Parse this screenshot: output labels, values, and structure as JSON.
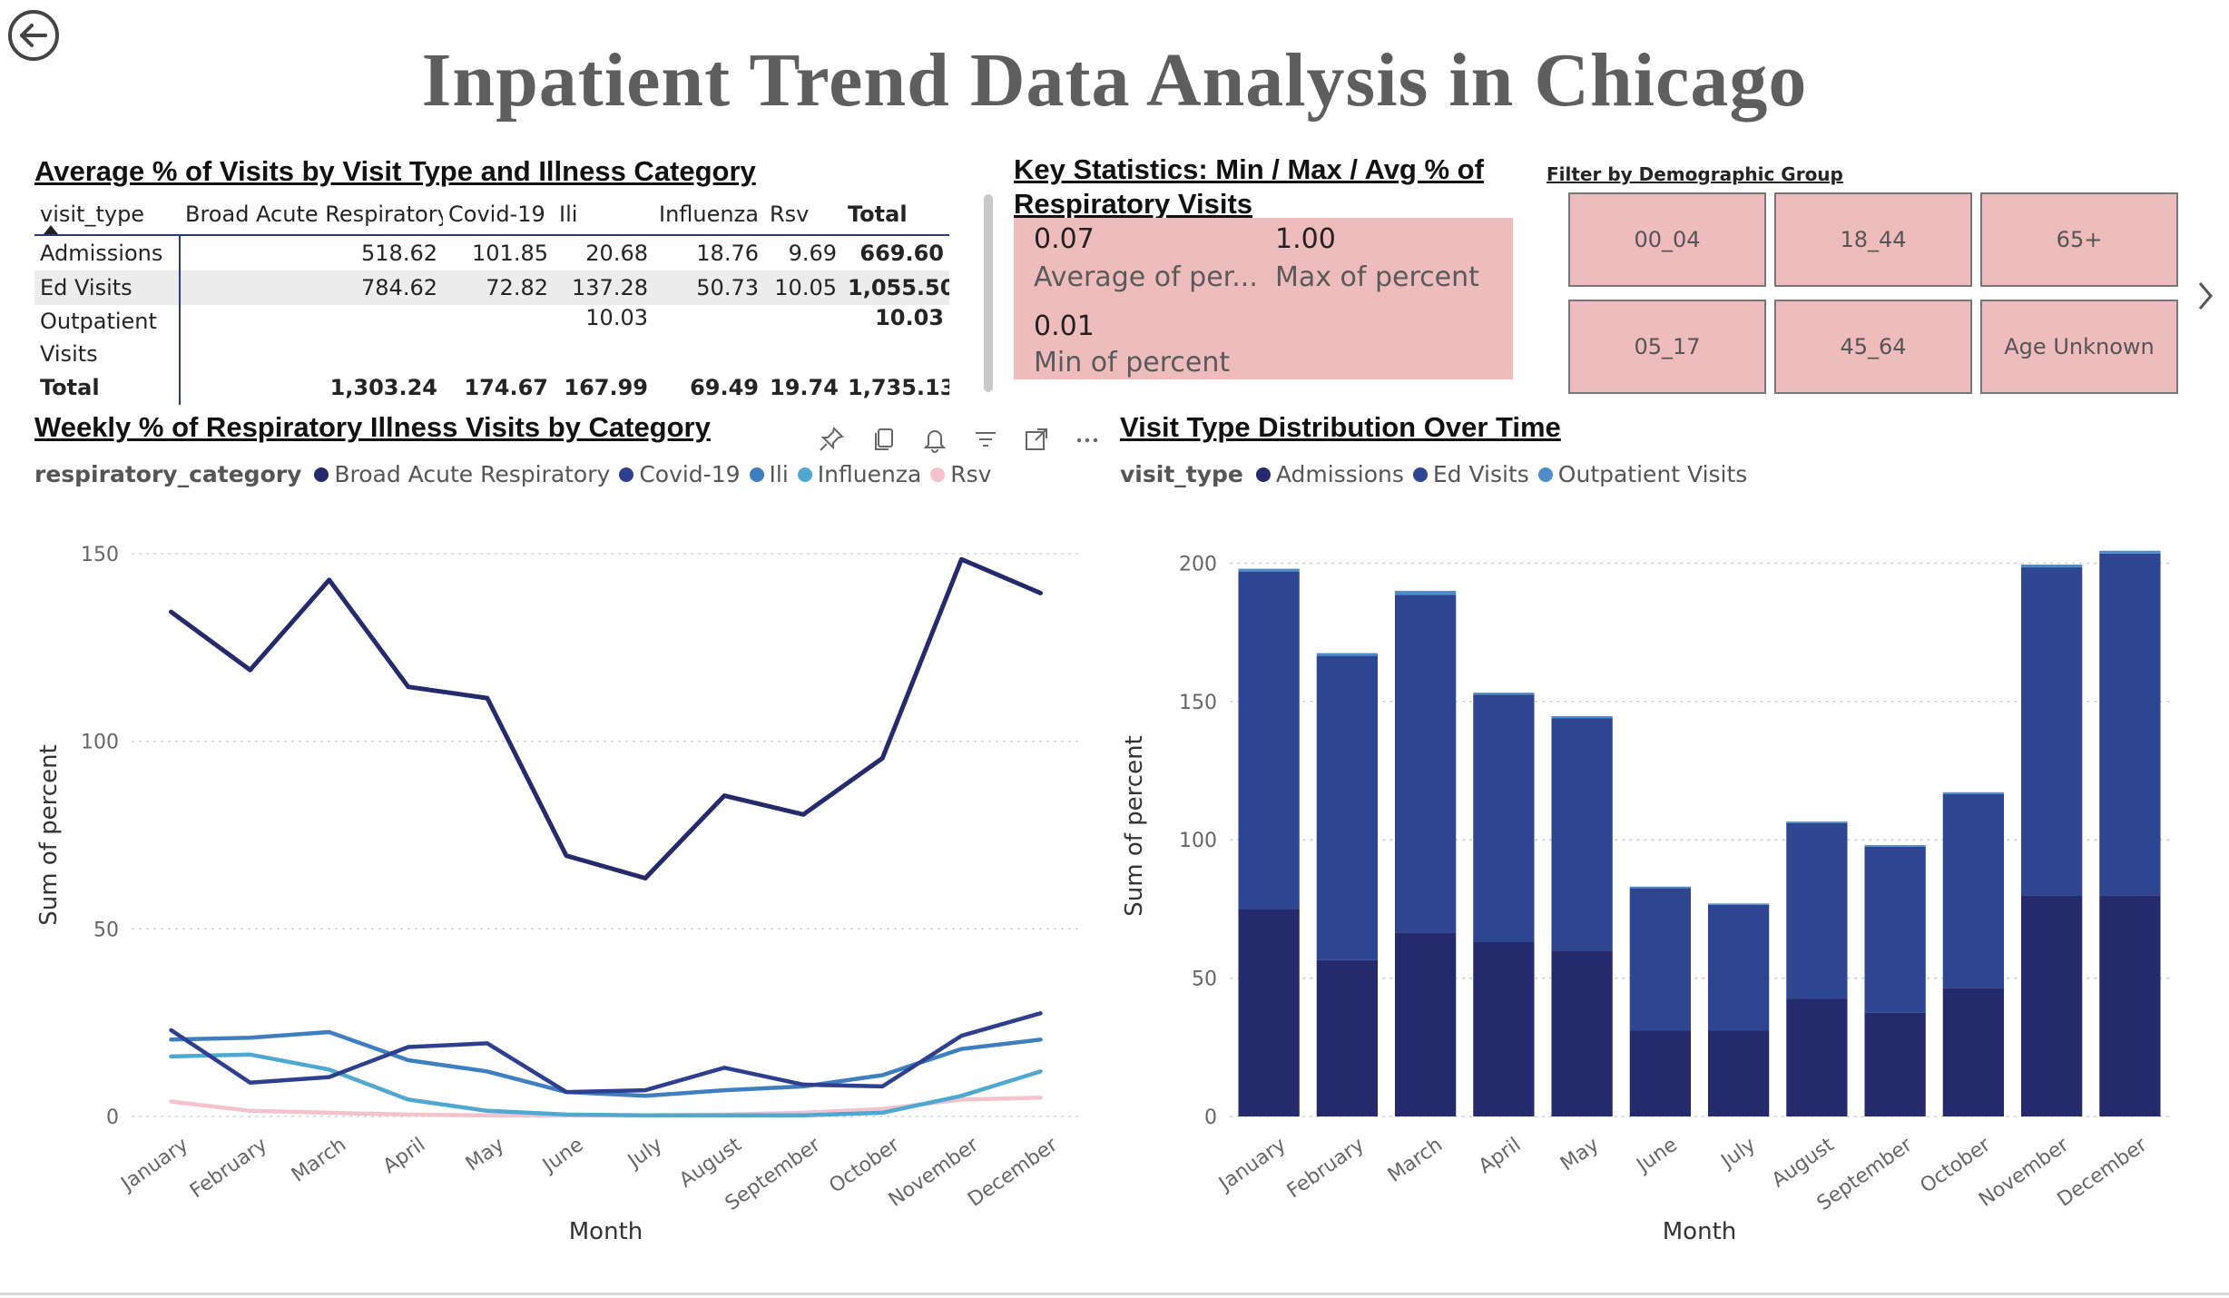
{
  "page": {
    "title": "Inpatient Trend Data Analysis in Chicago"
  },
  "matrix": {
    "title": "Average % of Visits by Visit Type and Illness Category",
    "columns": [
      "visit_type",
      "Broad Acute Respiratory",
      "Covid-19",
      "Ili",
      "Influenza",
      "Rsv",
      "Total"
    ],
    "rows": [
      [
        "Admissions",
        "518.62",
        "101.85",
        "20.68",
        "18.76",
        "9.69",
        "669.60"
      ],
      [
        "Ed Visits",
        "784.62",
        "72.82",
        "137.28",
        "50.73",
        "10.05",
        "1,055.50"
      ],
      [
        "Outpatient Visits",
        "",
        "",
        "10.03",
        "",
        "",
        "10.03"
      ],
      [
        "Total",
        "1,303.24",
        "174.67",
        "167.99",
        "69.49",
        "19.74",
        "1,735.13"
      ]
    ]
  },
  "key_stats": {
    "title": "Key Statistics: Min / Max / Avg % of Respiratory Visits",
    "avg_value": "0.07",
    "avg_label": "Average of per...",
    "max_value": "1.00",
    "max_label": "Max of percent",
    "min_value": "0.01",
    "min_label": "Min of percent"
  },
  "filter": {
    "title": "Filter by Demographic Group",
    "options": [
      "00_04",
      "18_44",
      "65+",
      "05_17",
      "45_64",
      "Age Unknown"
    ]
  },
  "colors": {
    "broad": "#242a6b",
    "covid": "#2d3f8e",
    "ili": "#3f7fbf",
    "influenza": "#4fa8d0",
    "rsv": "#f4c2ce",
    "admissions": "#242a6b",
    "ed": "#2e4591",
    "outpatient": "#4f8ccc",
    "slicer_bg": "#efbcbd",
    "title_gray": "#5e5e5e"
  },
  "line_chart": {
    "title": "Weekly % of Respiratory Illness Visits by Category",
    "legend_title": "respiratory_category",
    "legend": [
      "Broad Acute Respiratory",
      "Covid-19",
      "Ili",
      "Influenza",
      "Rsv"
    ],
    "xlabel": "Month",
    "ylabel": "Sum of percent"
  },
  "bar_chart": {
    "title": "Visit Type Distribution Over Time",
    "legend_title": "visit_type",
    "legend": [
      "Admissions",
      "Ed Visits",
      "Outpatient Visits"
    ],
    "xlabel": "Month",
    "ylabel": "Sum of percent"
  },
  "toolbar_icons": [
    "pin-icon",
    "copy-icon",
    "bell-icon",
    "filter-icon",
    "focus-mode-icon",
    "more-options-icon"
  ],
  "chart_data": [
    {
      "type": "line",
      "title": "Weekly % of Respiratory Illness Visits by Category",
      "xlabel": "Month",
      "ylabel": "Sum of percent",
      "ylim": [
        0,
        150
      ],
      "yticks": [
        0,
        50,
        100,
        150
      ],
      "grid": true,
      "legend_position": "top-left",
      "categories": [
        "January",
        "February",
        "March",
        "April",
        "May",
        "June",
        "July",
        "August",
        "September",
        "October",
        "November",
        "December"
      ],
      "series": [
        {
          "name": "Broad Acute Respiratory",
          "values": [
            134.5,
            119,
            143,
            114.5,
            111.5,
            69.5,
            63.5,
            85.5,
            80.5,
            95.5,
            148.5,
            139.5
          ]
        },
        {
          "name": "Covid-19",
          "values": [
            23,
            9,
            10.5,
            18.5,
            19.5,
            6.5,
            7,
            13,
            8.5,
            8,
            21.5,
            27.5
          ]
        },
        {
          "name": "Ili",
          "values": [
            20.5,
            21,
            22.5,
            15,
            12,
            6.5,
            5.5,
            7,
            8,
            11,
            18,
            20.5
          ]
        },
        {
          "name": "Influenza",
          "values": [
            16,
            16.5,
            12.5,
            4.5,
            1.5,
            0.5,
            0.3,
            0.3,
            0.3,
            1,
            5.5,
            12
          ]
        },
        {
          "name": "Rsv",
          "values": [
            4,
            1.5,
            1,
            0.5,
            0.3,
            0.3,
            0.3,
            0.5,
            1,
            2,
            4.5,
            5
          ]
        }
      ]
    },
    {
      "type": "bar",
      "stacked": true,
      "title": "Visit Type Distribution Over Time",
      "xlabel": "Month",
      "ylabel": "Sum of percent",
      "ylim": [
        0,
        210
      ],
      "yticks": [
        0,
        50,
        100,
        150,
        200
      ],
      "grid": true,
      "legend_position": "top-left",
      "categories": [
        "January",
        "February",
        "March",
        "April",
        "May",
        "June",
        "July",
        "August",
        "September",
        "October",
        "November",
        "December"
      ],
      "series": [
        {
          "name": "Admissions",
          "values": [
            75,
            56.5,
            66.5,
            63,
            60,
            31,
            31,
            42.5,
            37.5,
            46.5,
            80,
            80
          ]
        },
        {
          "name": "Ed Visits",
          "values": [
            122,
            110,
            122,
            89.5,
            84,
            51.5,
            45.5,
            63.5,
            60,
            70,
            118.5,
            123.5
          ]
        },
        {
          "name": "Outpatient Visits",
          "values": [
            1,
            1,
            1.5,
            0.7,
            0.7,
            0.6,
            0.5,
            0.6,
            0.6,
            0.7,
            1,
            1
          ]
        }
      ]
    }
  ]
}
